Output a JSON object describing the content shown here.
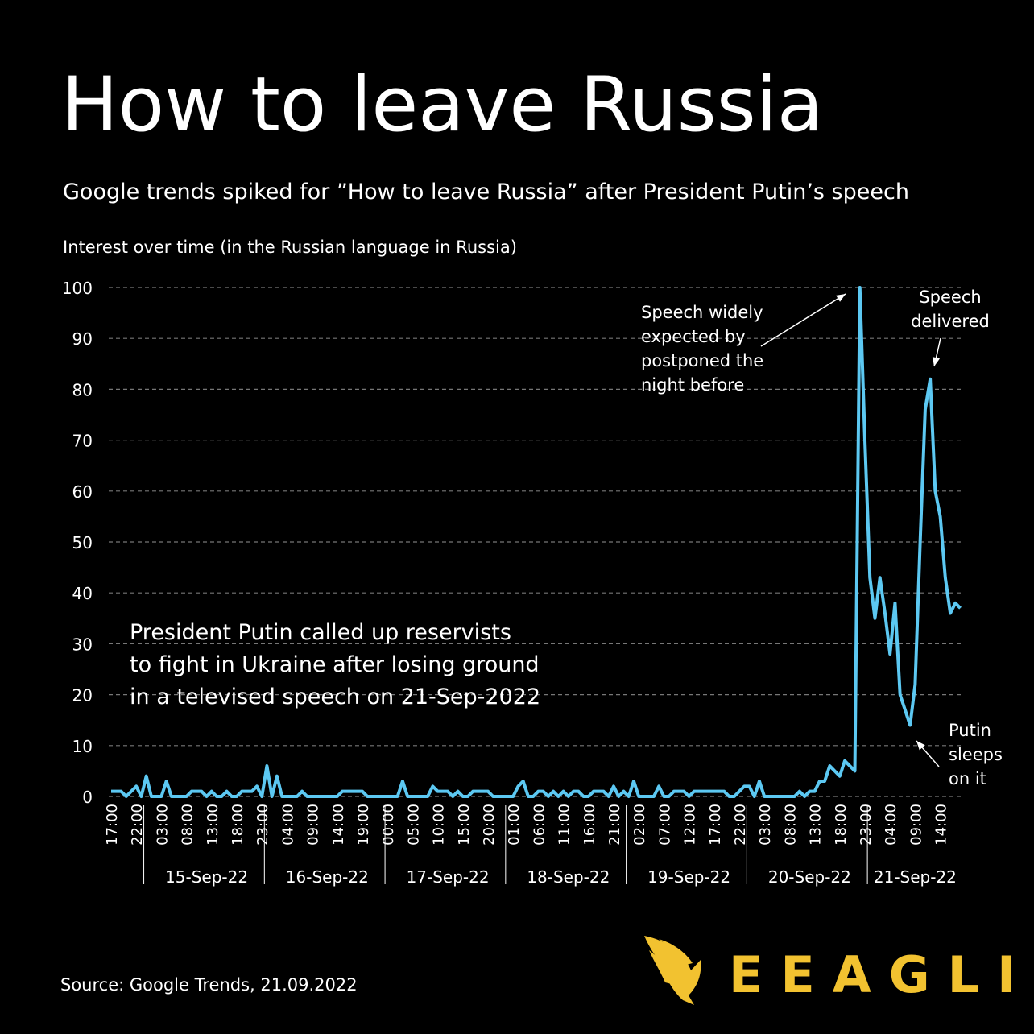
{
  "chart_data": {
    "type": "line",
    "title": "How to leave Russia",
    "subtitle": "Google trends spiked for ”How to leave Russia” after President Putin’s speech",
    "y_label": "Interest over time (in the Russian language in Russia)",
    "source": "Source: Google Trends, 21.09.2022",
    "brand": "EEAGLI",
    "grid": true,
    "ylim": [
      0,
      100
    ],
    "yticks": [
      0,
      10,
      20,
      30,
      40,
      50,
      60,
      70,
      80,
      90,
      100
    ],
    "categories": [
      "17:00",
      null,
      null,
      null,
      null,
      "22:00",
      null,
      null,
      null,
      null,
      "03:00",
      null,
      null,
      null,
      null,
      "08:00",
      null,
      null,
      null,
      null,
      "13:00",
      null,
      null,
      null,
      null,
      "18:00",
      null,
      null,
      null,
      null,
      "23:00",
      null,
      null,
      null,
      null,
      "04:00",
      null,
      null,
      null,
      null,
      "09:00",
      null,
      null,
      null,
      null,
      "14:00",
      null,
      null,
      null,
      null,
      "19:00",
      null,
      null,
      null,
      null,
      "00:00",
      null,
      null,
      null,
      null,
      "05:00",
      null,
      null,
      null,
      null,
      "10:00",
      null,
      null,
      null,
      null,
      "15:00",
      null,
      null,
      null,
      null,
      "20:00",
      null,
      null,
      null,
      null,
      "01:00",
      null,
      null,
      null,
      null,
      "06:00",
      null,
      null,
      null,
      null,
      "11:00",
      null,
      null,
      null,
      null,
      "16:00",
      null,
      null,
      null,
      null,
      "21:00",
      null,
      null,
      null,
      null,
      "02:00",
      null,
      null,
      null,
      null,
      "07:00",
      null,
      null,
      null,
      null,
      "12:00",
      null,
      null,
      null,
      null,
      "17:00",
      null,
      null,
      null,
      null,
      "22:00",
      null,
      null,
      null,
      null,
      "03:00",
      null,
      null,
      null,
      null,
      "08:00",
      null,
      null,
      null,
      null,
      "13:00",
      null,
      null,
      null,
      null,
      "18:00",
      null,
      null,
      null,
      null,
      "23:00",
      null,
      null,
      null,
      null,
      "04:00",
      null,
      null,
      null,
      null,
      "09:00",
      null,
      null,
      null,
      null,
      "14:00",
      null,
      null,
      null,
      null
    ],
    "day_groups": [
      "15-Sep-22",
      "16-Sep-22",
      "17-Sep-22",
      "18-Sep-22",
      "19-Sep-22",
      "20-Sep-22",
      "21-Sep-22"
    ],
    "series": [
      {
        "name": "How to leave Russia",
        "color": "#5cc8f2",
        "values": [
          1,
          1,
          1,
          0,
          1,
          2,
          0,
          4,
          0,
          0,
          0,
          3,
          0,
          0,
          0,
          0,
          1,
          1,
          1,
          0,
          1,
          0,
          0,
          1,
          0,
          0,
          1,
          1,
          1,
          2,
          0,
          6,
          0,
          4,
          0,
          0,
          0,
          0,
          1,
          0,
          0,
          0,
          0,
          0,
          0,
          0,
          1,
          1,
          1,
          1,
          1,
          0,
          0,
          0,
          0,
          0,
          0,
          0,
          3,
          0,
          0,
          0,
          0,
          0,
          2,
          1,
          1,
          1,
          0,
          1,
          0,
          0,
          1,
          1,
          1,
          1,
          0,
          0,
          0,
          0,
          0,
          2,
          3,
          0,
          0,
          1,
          1,
          0,
          1,
          0,
          1,
          0,
          1,
          1,
          0,
          0,
          1,
          1,
          1,
          0,
          2,
          0,
          1,
          0,
          3,
          0,
          0,
          0,
          0,
          2,
          0,
          0,
          1,
          1,
          1,
          0,
          1,
          1,
          1,
          1,
          1,
          1,
          1,
          0,
          0,
          1,
          2,
          2,
          0,
          3,
          0,
          0,
          0,
          0,
          0,
          0,
          0,
          1,
          0,
          1,
          1,
          3,
          3,
          6,
          5,
          4,
          7,
          6,
          5,
          100,
          70,
          43,
          35,
          43,
          36,
          28,
          38,
          20,
          17,
          14,
          22,
          50,
          76,
          82,
          60,
          55,
          43,
          36,
          38,
          37
        ]
      }
    ],
    "annotations": [
      {
        "lines": [
          "Speech widely",
          "expected by",
          "postponed the",
          "night before"
        ]
      },
      {
        "lines": [
          "Speech",
          "delivered"
        ]
      },
      {
        "lines": [
          "Putin",
          "sleeps",
          "on it"
        ]
      },
      {
        "lines": [
          "President Putin called up reservists",
          "to fight in Ukraine after losing ground",
          "in a televised speech on 21-Sep-2022"
        ]
      }
    ]
  }
}
